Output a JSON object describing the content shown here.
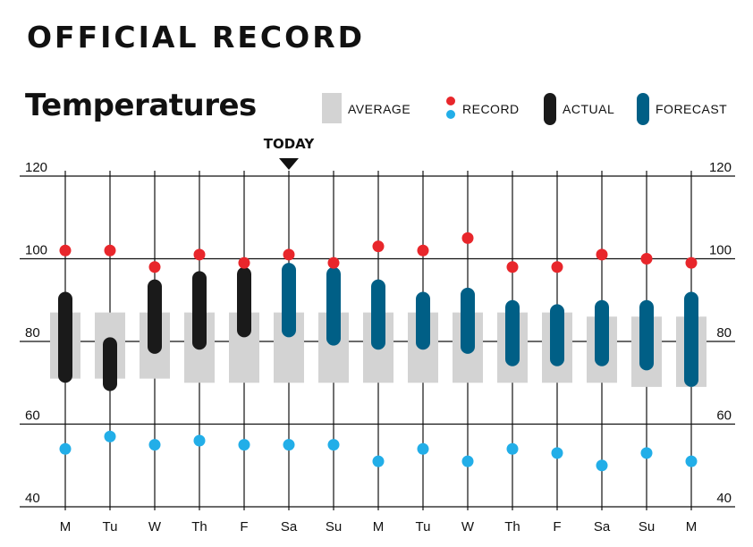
{
  "header": {
    "title": "OFFICIAL RECORD"
  },
  "chart_data": {
    "type": "range-bar",
    "title": "Temperatures",
    "today_label": "TODAY",
    "today_index": 5,
    "legend": [
      {
        "key": "average",
        "label": "AVERAGE"
      },
      {
        "key": "record",
        "label": "RECORD"
      },
      {
        "key": "actual",
        "label": "ACTUAL"
      },
      {
        "key": "forecast",
        "label": "FORECAST"
      }
    ],
    "colors": {
      "average": "#d3d3d3",
      "record_high": "#e8262b",
      "record_low": "#22aee8",
      "actual": "#1a1a1a",
      "forecast": "#005f86"
    },
    "ylim": [
      40,
      120
    ],
    "yticks": [
      120,
      100,
      80,
      60,
      40
    ],
    "categories": [
      "M",
      "Tu",
      "W",
      "Th",
      "F",
      "Sa",
      "Su",
      "M",
      "Tu",
      "W",
      "Th",
      "F",
      "Sa",
      "Su",
      "M"
    ],
    "average_high": [
      87,
      87,
      87,
      87,
      87,
      87,
      87,
      87,
      87,
      87,
      87,
      87,
      86,
      86,
      86
    ],
    "average_low": [
      71,
      71,
      71,
      70,
      70,
      70,
      70,
      70,
      70,
      70,
      70,
      70,
      70,
      69,
      69
    ],
    "record_high": [
      102,
      102,
      98,
      101,
      99,
      101,
      99,
      103,
      102,
      105,
      98,
      98,
      101,
      100,
      99
    ],
    "record_low": [
      54,
      57,
      55,
      56,
      55,
      55,
      55,
      51,
      54,
      51,
      54,
      53,
      50,
      53,
      51
    ],
    "range_high": [
      92,
      81,
      95,
      97,
      98,
      99,
      98,
      95,
      92,
      93,
      90,
      89,
      90,
      90,
      92
    ],
    "range_low": [
      70,
      68,
      77,
      78,
      81,
      81,
      79,
      78,
      78,
      77,
      74,
      74,
      74,
      73,
      69
    ],
    "range_type": [
      "actual",
      "actual",
      "actual",
      "actual",
      "actual",
      "forecast",
      "forecast",
      "forecast",
      "forecast",
      "forecast",
      "forecast",
      "forecast",
      "forecast",
      "forecast",
      "forecast"
    ]
  }
}
